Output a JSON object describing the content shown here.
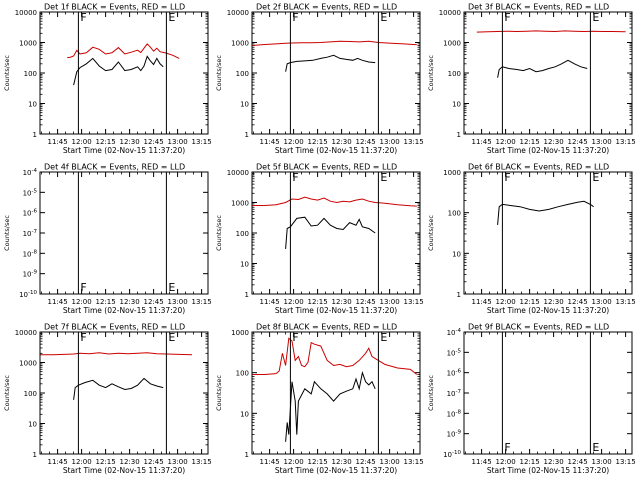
{
  "figure": {
    "background": "#ffffff",
    "axis_color": "#000000",
    "events_color": "#000000",
    "lld_color": "#cc0000"
  },
  "chart_data": [
    {
      "type": "line",
      "title": "Det 1f BLACK = Events, RED = LLD",
      "xlabel": "Start Time (02-Nov-15 11:37:20)",
      "ylabel": "Counts/sec",
      "xlim": [
        -3,
        102
      ],
      "xticks": [
        8,
        23,
        38,
        53,
        68,
        83,
        98
      ],
      "xticklabels": [
        "11:45",
        "12:00",
        "12:15",
        "12:30",
        "12:45",
        "13:00",
        "13:15"
      ],
      "scale": "log",
      "ylim": [
        1,
        10000
      ],
      "yticks": [
        1,
        10,
        100,
        1000,
        10000
      ],
      "yticklabels": [
        "1",
        "10",
        "100",
        "1000",
        "10000"
      ],
      "markers": [
        {
          "t": 21,
          "label": "F"
        },
        {
          "t": 76,
          "label": "E"
        }
      ],
      "series": [
        {
          "name": "Events",
          "color": "#000000",
          "t": [
            18,
            20,
            22,
            26,
            30,
            34,
            38,
            42,
            46,
            50,
            54,
            58,
            60,
            62,
            64,
            66,
            68,
            70,
            72,
            74
          ],
          "values": [
            40,
            110,
            150,
            200,
            300,
            170,
            120,
            130,
            230,
            120,
            130,
            160,
            120,
            170,
            350,
            250,
            190,
            300,
            200,
            160
          ]
        },
        {
          "name": "LLD",
          "color": "#cc0000",
          "t": [
            14,
            16,
            18,
            20,
            22,
            26,
            30,
            34,
            38,
            42,
            46,
            50,
            54,
            58,
            60,
            62,
            64,
            66,
            68,
            70,
            72,
            76,
            80,
            84
          ],
          "values": [
            320,
            330,
            360,
            550,
            420,
            460,
            700,
            600,
            420,
            460,
            680,
            420,
            480,
            560,
            470,
            650,
            900,
            700,
            520,
            650,
            500,
            450,
            380,
            300
          ]
        }
      ]
    },
    {
      "type": "line",
      "title": "Det 2f BLACK = Events, RED = LLD",
      "xlabel": "Start Time (02-Nov-15 11:37:20)",
      "ylabel": "Counts/sec",
      "xlim": [
        -3,
        102
      ],
      "xticks": [
        8,
        23,
        38,
        53,
        68,
        83,
        98
      ],
      "xticklabels": [
        "11:45",
        "12:00",
        "12:15",
        "12:30",
        "12:45",
        "13:00",
        "13:15"
      ],
      "scale": "log",
      "ylim": [
        1,
        10000
      ],
      "yticks": [
        1,
        10,
        100,
        1000,
        10000
      ],
      "yticklabels": [
        "1",
        "10",
        "100",
        "1000",
        "10000"
      ],
      "markers": [
        {
          "t": 21,
          "label": "F"
        },
        {
          "t": 76,
          "label": "E"
        }
      ],
      "series": [
        {
          "name": "Events",
          "color": "#000000",
          "t": [
            18,
            19,
            21,
            25,
            30,
            35,
            40,
            44,
            48,
            52,
            56,
            60,
            63,
            66,
            70,
            74
          ],
          "values": [
            110,
            200,
            220,
            240,
            250,
            260,
            300,
            330,
            380,
            300,
            280,
            260,
            300,
            260,
            230,
            220
          ]
        },
        {
          "name": "LLD",
          "color": "#cc0000",
          "t": [
            -3,
            5,
            12,
            18,
            22,
            28,
            34,
            40,
            46,
            52,
            58,
            64,
            70,
            76,
            84,
            92,
            100
          ],
          "values": [
            800,
            860,
            900,
            940,
            960,
            980,
            980,
            1000,
            1050,
            1100,
            1080,
            1050,
            1100,
            1000,
            950,
            900,
            850
          ]
        }
      ]
    },
    {
      "type": "line",
      "title": "Det 3f BLACK = Events, RED = LLD",
      "xlabel": "Start Time (02-Nov-15 11:37:20)",
      "ylabel": "Counts/sec",
      "xlim": [
        -3,
        102
      ],
      "xticks": [
        8,
        23,
        38,
        53,
        68,
        83,
        98
      ],
      "xticklabels": [
        "11:45",
        "12:00",
        "12:15",
        "12:30",
        "12:45",
        "13:00",
        "13:15"
      ],
      "scale": "log",
      "ylim": [
        1,
        10000
      ],
      "yticks": [
        1,
        10,
        100,
        1000,
        10000
      ],
      "yticklabels": [
        "1",
        "10",
        "100",
        "1000",
        "10000"
      ],
      "markers": [
        {
          "t": 21,
          "label": "F"
        },
        {
          "t": 76,
          "label": "E"
        }
      ],
      "series": [
        {
          "name": "Events",
          "color": "#000000",
          "t": [
            18,
            19,
            21,
            25,
            30,
            34,
            38,
            42,
            46,
            50,
            54,
            58,
            62,
            66,
            70,
            74
          ],
          "values": [
            70,
            130,
            160,
            140,
            130,
            120,
            140,
            110,
            120,
            140,
            160,
            200,
            260,
            200,
            160,
            140
          ]
        },
        {
          "name": "LLD",
          "color": "#cc0000",
          "t": [
            5,
            12,
            18,
            24,
            30,
            36,
            42,
            48,
            54,
            60,
            66,
            72,
            78,
            84,
            90,
            98
          ],
          "values": [
            2200,
            2250,
            2300,
            2350,
            2300,
            2350,
            2400,
            2350,
            2300,
            2400,
            2350,
            2300,
            2350,
            2300,
            2300,
            2250
          ]
        }
      ]
    },
    {
      "type": "line",
      "title": "Det 4f BLACK = Events, RED = LLD",
      "xlabel": "Start Time (02-Nov-15 11:37:20)",
      "ylabel": "Counts/sec",
      "xlim": [
        -3,
        102
      ],
      "xticks": [
        8,
        23,
        38,
        53,
        68,
        83,
        98
      ],
      "xticklabels": [
        "11:45",
        "12:00",
        "12:15",
        "12:30",
        "12:45",
        "13:00",
        "13:15"
      ],
      "scale": "log",
      "ylim": [
        1e-10,
        0.0001
      ],
      "yticks": [
        1e-10,
        1e-09,
        1e-08,
        1e-07,
        1e-06,
        1e-05,
        0.0001
      ],
      "yticklabels": [
        "10-10",
        "10-9",
        "10-8",
        "10-7",
        "10-6",
        "10-5",
        "10-4"
      ],
      "ytick_sub": true,
      "ytick_minor": false,
      "markers": [
        {
          "t": 21,
          "label": "F"
        },
        {
          "t": 76,
          "label": "E"
        }
      ],
      "series": []
    },
    {
      "type": "line",
      "title": "Det 5f BLACK = Events, RED = LLD",
      "xlabel": "Start Time (02-Nov-15 11:37:20)",
      "ylabel": "Counts/sec",
      "xlim": [
        -3,
        102
      ],
      "xticks": [
        8,
        23,
        38,
        53,
        68,
        83,
        98
      ],
      "xticklabels": [
        "11:45",
        "12:00",
        "12:15",
        "12:30",
        "12:45",
        "13:00",
        "13:15"
      ],
      "scale": "log",
      "ylim": [
        1,
        10000
      ],
      "yticks": [
        1,
        10,
        100,
        1000,
        10000
      ],
      "yticklabels": [
        "1",
        "10",
        "100",
        "1000",
        "10000"
      ],
      "markers": [
        {
          "t": 21,
          "label": "F"
        },
        {
          "t": 76,
          "label": "E"
        }
      ],
      "series": [
        {
          "name": "Events",
          "color": "#000000",
          "t": [
            18,
            19,
            21,
            25,
            30,
            34,
            38,
            42,
            46,
            50,
            54,
            58,
            62,
            64,
            66,
            70,
            74
          ],
          "values": [
            30,
            140,
            160,
            300,
            330,
            170,
            180,
            300,
            180,
            140,
            130,
            220,
            180,
            280,
            160,
            140,
            100
          ]
        },
        {
          "name": "LLD",
          "color": "#cc0000",
          "t": [
            -3,
            5,
            12,
            18,
            22,
            26,
            30,
            34,
            38,
            42,
            46,
            50,
            54,
            58,
            62,
            66,
            70,
            74,
            80,
            88,
            96,
            100
          ],
          "values": [
            800,
            800,
            850,
            1000,
            1300,
            1250,
            1500,
            1300,
            1200,
            1400,
            1100,
            1000,
            1100,
            1050,
            1200,
            1300,
            1100,
            1000,
            950,
            850,
            780,
            760
          ]
        }
      ]
    },
    {
      "type": "line",
      "title": "Det 6f BLACK = Events, RED = LLD",
      "xlabel": "Start Time (02-Nov-15 11:37:20)",
      "ylabel": "Counts/sec",
      "xlim": [
        -3,
        102
      ],
      "xticks": [
        8,
        23,
        38,
        53,
        68,
        83,
        98
      ],
      "xticklabels": [
        "11:45",
        "12:00",
        "12:15",
        "12:30",
        "12:45",
        "13:00",
        "13:15"
      ],
      "scale": "log",
      "ylim": [
        1,
        1000
      ],
      "yticks": [
        1,
        10,
        100,
        1000
      ],
      "yticklabels": [
        "1",
        "10",
        "100",
        "1000"
      ],
      "markers": [
        {
          "t": 21,
          "label": "F"
        },
        {
          "t": 76,
          "label": "E"
        }
      ],
      "series": [
        {
          "name": "Events",
          "color": "#000000",
          "t": [
            18,
            19,
            21,
            26,
            32,
            38,
            44,
            50,
            56,
            62,
            68,
            72,
            76,
            78
          ],
          "values": [
            50,
            140,
            160,
            150,
            140,
            120,
            110,
            120,
            140,
            160,
            180,
            190,
            160,
            140
          ]
        }
      ]
    },
    {
      "type": "line",
      "title": "Det 7f BLACK = Events, RED = LLD",
      "xlabel": "Start Time (02-Nov-15 11:37:20)",
      "ylabel": "Counts/sec",
      "xlim": [
        -3,
        102
      ],
      "xticks": [
        8,
        23,
        38,
        53,
        68,
        83,
        98
      ],
      "xticklabels": [
        "11:45",
        "12:00",
        "12:15",
        "12:30",
        "12:45",
        "13:00",
        "13:15"
      ],
      "scale": "log",
      "ylim": [
        1,
        10000
      ],
      "yticks": [
        1,
        10,
        100,
        1000,
        10000
      ],
      "yticklabels": [
        "1",
        "10",
        "100",
        "1000",
        "10000"
      ],
      "markers": [
        {
          "t": 21,
          "label": "F"
        },
        {
          "t": 76,
          "label": "E"
        }
      ],
      "series": [
        {
          "name": "Events",
          "color": "#000000",
          "t": [
            18,
            19,
            21,
            25,
            30,
            34,
            38,
            42,
            46,
            50,
            54,
            58,
            62,
            66,
            70,
            74
          ],
          "values": [
            60,
            150,
            180,
            220,
            260,
            180,
            150,
            200,
            160,
            130,
            140,
            180,
            300,
            200,
            170,
            150
          ]
        },
        {
          "name": "LLD",
          "color": "#cc0000",
          "t": [
            -3,
            5,
            12,
            18,
            22,
            28,
            34,
            40,
            46,
            52,
            58,
            64,
            70,
            76,
            84,
            92
          ],
          "values": [
            1800,
            1800,
            1850,
            1900,
            2000,
            1950,
            2100,
            1900,
            2000,
            1950,
            2000,
            2100,
            1950,
            1900,
            1850,
            1800
          ]
        }
      ]
    },
    {
      "type": "line",
      "title": "Det 8f BLACK = Events, RED = LLD",
      "xlabel": "Start Time (02-Nov-15 11:37:20)",
      "ylabel": "Counts/sec",
      "xlim": [
        -3,
        102
      ],
      "xticks": [
        8,
        23,
        38,
        53,
        68,
        83,
        98
      ],
      "xticklabels": [
        "11:45",
        "12:00",
        "12:15",
        "12:30",
        "12:45",
        "13:00",
        "13:15"
      ],
      "scale": "log",
      "ylim": [
        1,
        1000
      ],
      "yticks": [
        1,
        10,
        100,
        1000
      ],
      "yticklabels": [
        "1",
        "10",
        "100",
        "1000"
      ],
      "markers": [
        {
          "t": 21,
          "label": "F"
        },
        {
          "t": 76,
          "label": "E"
        }
      ],
      "series": [
        {
          "name": "Events",
          "color": "#000000",
          "t": [
            18,
            19,
            20,
            22,
            24,
            25,
            26,
            30,
            34,
            36,
            40,
            44,
            48,
            52,
            56,
            60,
            62,
            64,
            66,
            68,
            70,
            72,
            74
          ],
          "values": [
            2,
            6,
            3,
            60,
            20,
            3,
            20,
            40,
            30,
            60,
            40,
            30,
            20,
            30,
            35,
            40,
            70,
            40,
            100,
            60,
            50,
            60,
            40
          ]
        },
        {
          "name": "LLD",
          "color": "#cc0000",
          "t": [
            -3,
            5,
            12,
            14,
            16,
            18,
            20,
            22,
            24,
            26,
            28,
            30,
            32,
            34,
            36,
            40,
            44,
            48,
            52,
            56,
            60,
            64,
            68,
            70,
            72,
            76,
            80,
            88,
            96,
            100
          ],
          "values": [
            90,
            90,
            95,
            110,
            300,
            150,
            700,
            600,
            200,
            250,
            150,
            140,
            180,
            550,
            500,
            450,
            200,
            150,
            160,
            140,
            150,
            200,
            300,
            400,
            250,
            200,
            160,
            130,
            120,
            90
          ]
        }
      ]
    },
    {
      "type": "line",
      "title": "Det 9f BLACK = Events, RED = LLD",
      "xlabel": "Start Time (02-Nov-15 11:37:20)",
      "ylabel": "Counts/sec",
      "xlim": [
        -3,
        102
      ],
      "xticks": [
        8,
        23,
        38,
        53,
        68,
        83,
        98
      ],
      "xticklabels": [
        "11:45",
        "12:00",
        "12:15",
        "12:30",
        "12:45",
        "13:00",
        "13:15"
      ],
      "scale": "log",
      "ylim": [
        1e-10,
        0.0001
      ],
      "yticks": [
        1e-10,
        1e-09,
        1e-08,
        1e-07,
        1e-06,
        1e-05,
        0.0001
      ],
      "yticklabels": [
        "10-10",
        "10-9",
        "10-8",
        "10-7",
        "10-6",
        "10-5",
        "10-4"
      ],
      "ytick_sub": true,
      "ytick_minor": false,
      "markers": [
        {
          "t": 21,
          "label": "F"
        },
        {
          "t": 76,
          "label": "E"
        }
      ],
      "series": []
    }
  ]
}
